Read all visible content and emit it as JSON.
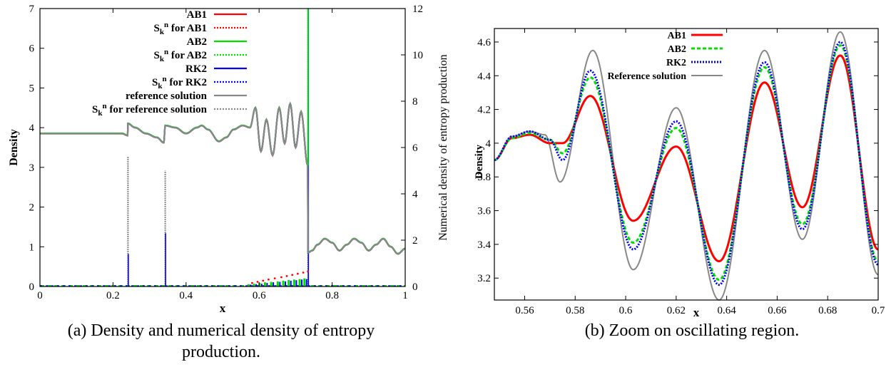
{
  "captions": {
    "a": "(a) Density and numerical density of entropy production.",
    "b": "(b) Zoom on oscillating region."
  },
  "colors": {
    "ab1": "#ff0000",
    "ab2": "#00e000",
    "rk2": "#0000ff",
    "reference": "#888888"
  },
  "chart_data": [
    {
      "type": "line",
      "xlabel": "x",
      "ylabel": "Density",
      "y2label": "Numerical density of entropy production",
      "xlim": [
        0,
        1
      ],
      "ylim": [
        0,
        7
      ],
      "y2lim": [
        0,
        12
      ],
      "xticks": [
        0,
        0.2,
        0.4,
        0.6,
        0.8,
        1
      ],
      "xtick_labels": [
        "0",
        "0.2",
        "0.4",
        "0.6",
        "0.8",
        "1"
      ],
      "yticks": [
        0,
        1,
        2,
        3,
        4,
        5,
        6,
        7
      ],
      "y2ticks": [
        0,
        2,
        4,
        6,
        8,
        10,
        12
      ],
      "grid": false,
      "legend_position": "top-right",
      "legend": [
        {
          "label": "AB1",
          "color": "#ff0000",
          "style": "solid"
        },
        {
          "label": "for AB1",
          "sym": "S",
          "sub": "k",
          "sup": "n",
          "color": "#ff0000",
          "style": "dotted"
        },
        {
          "label": "AB2",
          "color": "#00e000",
          "style": "solid"
        },
        {
          "label": "for AB2",
          "sym": "S",
          "sub": "k",
          "sup": "n",
          "color": "#00e000",
          "style": "dotted"
        },
        {
          "label": "RK2",
          "color": "#0000ff",
          "style": "solid"
        },
        {
          "label": "for RK2",
          "sym": "S",
          "sub": "k",
          "sup": "n",
          "color": "#0000ff",
          "style": "dotted"
        },
        {
          "label": "reference solution",
          "color": "#888888",
          "style": "solid"
        },
        {
          "label": "for reference solution",
          "sym": "S",
          "sub": "k",
          "sup": "n",
          "color": "#888888",
          "style": "dotted"
        }
      ],
      "density_profile": {
        "x": [
          0,
          0.225,
          0.24,
          0.241,
          0.26,
          0.29,
          0.32,
          0.339,
          0.343,
          0.37,
          0.4,
          0.43,
          0.443,
          0.46,
          0.49,
          0.51,
          0.53,
          0.555,
          0.575,
          0.59,
          0.605,
          0.62,
          0.637,
          0.655,
          0.67,
          0.685,
          0.7,
          0.715,
          0.733,
          0.734,
          0.745,
          0.76,
          0.78,
          0.8,
          0.82,
          0.84,
          0.86,
          0.88,
          0.9,
          0.92,
          0.94,
          0.96,
          0.98,
          1.0
        ],
        "y": [
          3.85,
          3.85,
          3.8,
          4.1,
          4.0,
          3.85,
          3.75,
          3.62,
          4.05,
          4.0,
          3.85,
          4.0,
          4.05,
          3.95,
          3.65,
          3.75,
          3.95,
          4.05,
          4.0,
          4.5,
          3.4,
          4.2,
          3.3,
          4.5,
          3.6,
          4.6,
          3.5,
          4.4,
          3.05,
          0.85,
          0.9,
          1.05,
          1.2,
          1.1,
          0.9,
          1.05,
          1.2,
          1.1,
          0.9,
          1.05,
          1.2,
          1.0,
          0.82,
          0.95
        ]
      },
      "entropy_production": {
        "spikes": [
          {
            "x": 0.241,
            "reference": 5.6,
            "rk2": 1.4
          },
          {
            "x": 0.343,
            "reference": 5.0,
            "rk2": 2.3
          },
          {
            "x": 0.734,
            "reference": 12.0,
            "rk2": 12.0
          }
        ],
        "oscillation_peaks": {
          "x": [
            0.575,
            0.59,
            0.605,
            0.62,
            0.637,
            0.655,
            0.67,
            0.685,
            0.7,
            0.715,
            0.728
          ],
          "ab1": [
            0.15,
            0.2,
            0.25,
            0.3,
            0.35,
            0.4,
            0.45,
            0.5,
            0.55,
            0.6,
            0.65
          ],
          "ab2": [
            0.1,
            0.12,
            0.15,
            0.18,
            0.2,
            0.22,
            0.25,
            0.28,
            0.3,
            0.32,
            0.35
          ],
          "rk2": [
            0.08,
            0.1,
            0.12,
            0.15,
            0.18,
            0.2,
            0.22,
            0.25,
            0.27,
            0.3,
            0.32
          ]
        }
      }
    },
    {
      "type": "line",
      "xlabel": "x",
      "ylabel": "Density",
      "xlim": [
        0.548,
        0.7
      ],
      "ylim": [
        3.07,
        4.68
      ],
      "xticks": [
        0.56,
        0.58,
        0.6,
        0.62,
        0.64,
        0.66,
        0.68,
        0.7
      ],
      "xtick_labels": [
        "0.56",
        "0.58",
        "0.6",
        "0.62",
        "0.64",
        "0.66",
        "0.68",
        "0.7"
      ],
      "yticks": [
        3.2,
        3.4,
        3.6,
        3.8,
        4.0,
        4.2,
        4.4,
        4.6
      ],
      "ytick_labels": [
        "3.2",
        "3.4",
        "3.6",
        "3.8",
        "4",
        "4.2",
        "4.4",
        "4.6"
      ],
      "grid": false,
      "legend_position": "top-left",
      "series": [
        {
          "name": "AB1",
          "color": "#ff0000",
          "style": "solid",
          "x": [
            0.548,
            0.555,
            0.562,
            0.57,
            0.575,
            0.586,
            0.603,
            0.62,
            0.637,
            0.655,
            0.67,
            0.685,
            0.7
          ],
          "y": [
            3.9,
            4.03,
            4.05,
            4.0,
            4.0,
            4.28,
            3.54,
            3.98,
            3.3,
            4.36,
            3.62,
            4.52,
            3.37
          ]
        },
        {
          "name": "AB2",
          "color": "#00e000",
          "style": "dashed",
          "x": [
            0.548,
            0.555,
            0.562,
            0.57,
            0.575,
            0.586,
            0.603,
            0.62,
            0.637,
            0.655,
            0.67,
            0.685,
            0.7
          ],
          "y": [
            3.9,
            4.03,
            4.06,
            4.02,
            3.94,
            4.39,
            3.41,
            4.09,
            3.19,
            4.45,
            3.52,
            4.58,
            3.3
          ]
        },
        {
          "name": "RK2",
          "color": "#0000ff",
          "style": "dotted",
          "x": [
            0.548,
            0.555,
            0.562,
            0.57,
            0.575,
            0.586,
            0.603,
            0.62,
            0.637,
            0.655,
            0.67,
            0.685,
            0.7
          ],
          "y": [
            3.9,
            4.04,
            4.07,
            4.02,
            3.9,
            4.43,
            3.37,
            4.13,
            3.16,
            4.48,
            3.49,
            4.6,
            3.28
          ]
        },
        {
          "name": "Reference solution",
          "color": "#888888",
          "style": "solid",
          "x": [
            0.548,
            0.555,
            0.562,
            0.568,
            0.574,
            0.587,
            0.603,
            0.62,
            0.637,
            0.655,
            0.67,
            0.685,
            0.7
          ],
          "y": [
            3.9,
            4.04,
            4.07,
            4.05,
            3.77,
            4.55,
            3.25,
            4.21,
            3.07,
            4.55,
            3.43,
            4.66,
            3.22
          ]
        }
      ]
    }
  ]
}
